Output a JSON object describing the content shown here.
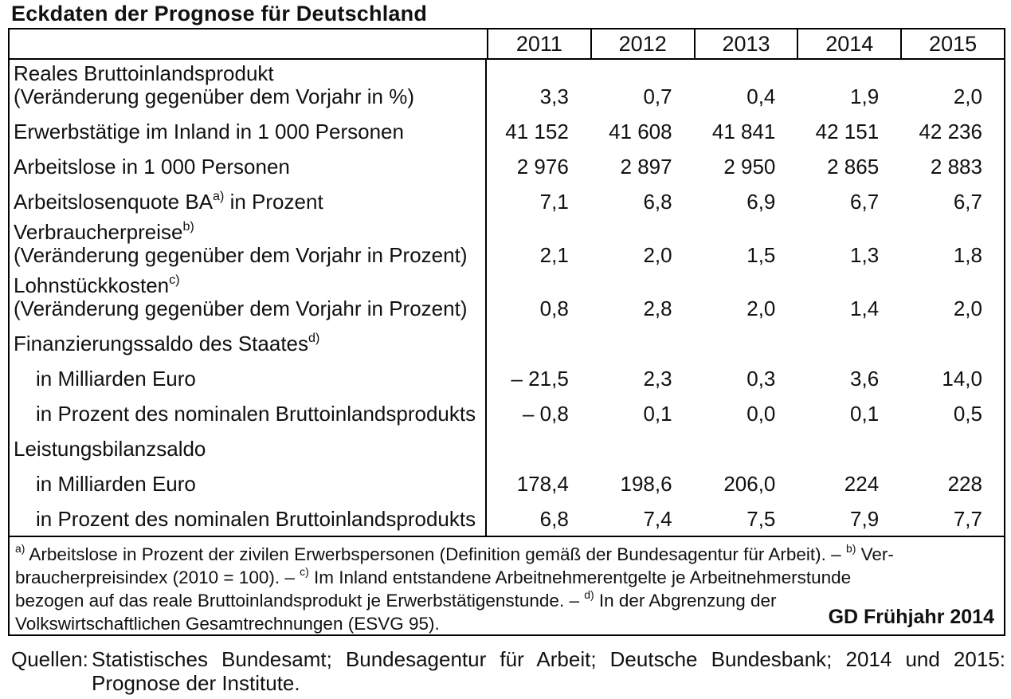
{
  "title": "Eckdaten der Prognose für Deutschland",
  "table": {
    "years": [
      "2011",
      "2012",
      "2013",
      "2014",
      "2015"
    ],
    "rows": [
      {
        "label": "Reales Bruttoinlandsprodukt",
        "label2": "(Veränderung gegenüber dem Vorjahr in %)",
        "values": [
          "3,3",
          "0,7",
          "0,4",
          "1,9",
          "2,0"
        ]
      },
      {
        "label": "Erwerbstätige im Inland in 1 000 Personen",
        "values": [
          "41 152",
          "41 608",
          "41 841",
          "42 151",
          "42 236"
        ]
      },
      {
        "label": "Arbeitslose in 1 000 Personen",
        "values": [
          "2 976",
          "2 897",
          "2 950",
          "2 865",
          "2 883"
        ]
      },
      {
        "label": "Arbeitslosenquote BA",
        "sup": "a)",
        "post": " in Prozent",
        "values": [
          "7,1",
          "6,8",
          "6,9",
          "6,7",
          "6,7"
        ]
      },
      {
        "label": "Verbraucherpreise",
        "sup": "b)",
        "label2": "(Veränderung gegenüber dem Vorjahr in Prozent)",
        "values": [
          "2,1",
          "2,0",
          "1,5",
          "1,3",
          "1,8"
        ]
      },
      {
        "label": "Lohnstückkosten",
        "sup": "c)",
        "label2": "(Veränderung gegenüber dem Vorjahr in Prozent)",
        "values": [
          "0,8",
          "2,8",
          "2,0",
          "1,4",
          "2,0"
        ]
      },
      {
        "label": "Finanzierungssaldo des Staates",
        "sup": "d)",
        "values": []
      },
      {
        "label": "in Milliarden Euro",
        "indent": true,
        "values": [
          "– 21,5",
          "2,3",
          "0,3",
          "3,6",
          "14,0"
        ]
      },
      {
        "label": "in Prozent des nominalen Bruttoinlandsprodukts",
        "indent": true,
        "values": [
          "– 0,8",
          "0,1",
          "0,0",
          "0,1",
          "0,5"
        ]
      },
      {
        "label": "Leistungsbilanzsaldo",
        "values": []
      },
      {
        "label": "in Milliarden Euro",
        "indent": true,
        "values": [
          "178,4",
          "198,6",
          "206,0",
          "224",
          "228"
        ]
      },
      {
        "label": "in Prozent des nominalen Bruttoinlandsprodukts",
        "indent": true,
        "values": [
          "6,8",
          "7,4",
          "7,5",
          "7,9",
          "7,7"
        ]
      }
    ]
  },
  "footnotes": {
    "lines": [
      {
        "segments": [
          {
            "sup": "a)"
          },
          {
            "text": " Arbeitslose in Prozent der zivilen Erwerbspersonen (Definition gemäß der Bundesagentur für Arbeit). – "
          },
          {
            "sup": "b)"
          },
          {
            "text": " Ver-"
          }
        ]
      },
      {
        "segments": [
          {
            "text": "braucherpreisindex (2010 = 100). – "
          },
          {
            "sup": "c)"
          },
          {
            "text": " Im Inland entstandene Arbeitnehmerentgelte je Arbeitnehmerstunde"
          }
        ]
      },
      {
        "segments": [
          {
            "text": "bezogen auf das reale Bruttoinlandsprodukt je Erwerbstätigenstunde. – "
          },
          {
            "sup": "d)"
          },
          {
            "text": " In der Abgrenzung der"
          }
        ]
      },
      {
        "segments": [
          {
            "text": "Volkswirtschaftlichen Gesamtrechnungen (ESVG 95)."
          }
        ]
      }
    ],
    "stamp": "GD Frühjahr 2014"
  },
  "sources": {
    "label": "Quellen:",
    "text": "Statistisches Bundesamt; Bundesagentur für Arbeit; Deutsche Bundesbank; 2014 und 2015: Prognose der Institute."
  }
}
